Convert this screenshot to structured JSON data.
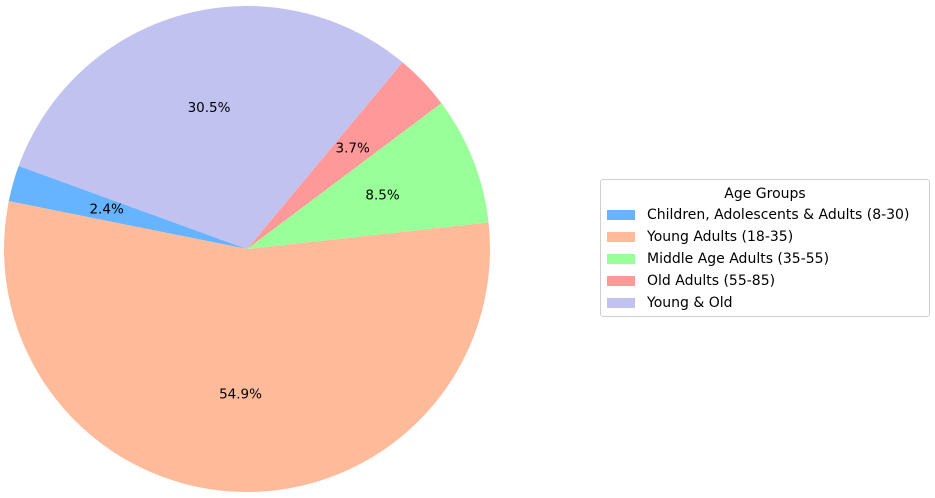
{
  "chart_data": {
    "type": "pie",
    "legend_title": "Age Groups",
    "legend_position": "right",
    "start_angle_deg": 160,
    "direction": "counterclockwise",
    "slices": [
      {
        "label": "Children, Adolescents & Adults (8-30)",
        "value": 2.4,
        "pct_text": "2.4%",
        "color": "#66b3ff"
      },
      {
        "label": "Young Adults (18-35)",
        "value": 54.9,
        "pct_text": "54.9%",
        "color": "#ffbb99"
      },
      {
        "label": "Middle Age Adults (35-55)",
        "value": 8.5,
        "pct_text": "8.5%",
        "color": "#99ff99"
      },
      {
        "label": "Old Adults (55-85)",
        "value": 3.7,
        "pct_text": "3.7%",
        "color": "#ff9999"
      },
      {
        "label": "Young & Old",
        "value": 30.5,
        "pct_text": "30.5%",
        "color": "#c2c2f0"
      }
    ]
  }
}
